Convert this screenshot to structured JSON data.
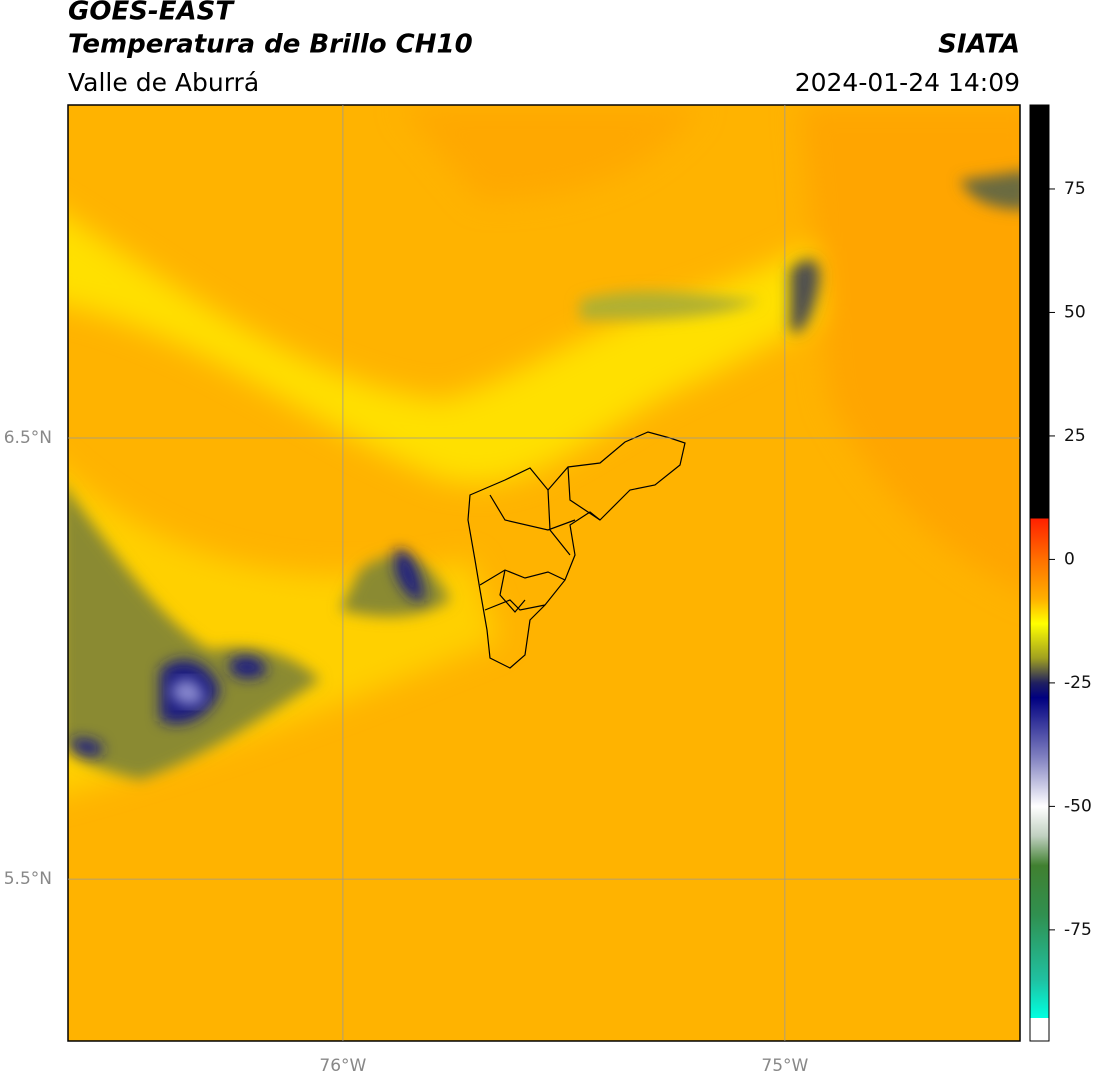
{
  "header": {
    "title": "GOES-EAST",
    "subtitle": "Temperatura de Brillo CH10",
    "region": "Valle de Aburrá",
    "source": "SIATA",
    "datetime": "2024-01-24 14:09"
  },
  "map": {
    "xlim": [
      -76.622,
      -74.468
    ],
    "ylim": [
      5.133,
      7.255
    ],
    "xticks": [
      {
        "value": -76,
        "label": "76°W"
      },
      {
        "value": -75,
        "label": "75°W"
      }
    ],
    "yticks": [
      {
        "value": 6.5,
        "label": "6.5°N"
      },
      {
        "value": 5.5,
        "label": "5.5°N"
      }
    ]
  },
  "colorbar": {
    "lim": [
      -97.5,
      92
    ],
    "ticks": [
      -75,
      -50,
      -25,
      0,
      25,
      50,
      75
    ],
    "stops": [
      {
        "value": 92,
        "color": "#000000"
      },
      {
        "value": 8.3,
        "color": "#000000"
      },
      {
        "value": 8.29,
        "color": "#ff2000"
      },
      {
        "value": 0,
        "color": "#ff7000"
      },
      {
        "value": -8,
        "color": "#ffb000"
      },
      {
        "value": -13,
        "color": "#ffff00"
      },
      {
        "value": -20,
        "color": "#a0a020"
      },
      {
        "value": -25,
        "color": "#202060"
      },
      {
        "value": -28,
        "color": "#000080"
      },
      {
        "value": -40,
        "color": "#8080c0"
      },
      {
        "value": -50,
        "color": "#ffffff"
      },
      {
        "value": -56,
        "color": "#c0d0c0"
      },
      {
        "value": -62,
        "color": "#408030"
      },
      {
        "value": -72,
        "color": "#309050"
      },
      {
        "value": -85,
        "color": "#20c0a0"
      },
      {
        "value": -92.8,
        "color": "#00ffe0"
      },
      {
        "value": -92.81,
        "color": "#ffffff"
      },
      {
        "value": -97.5,
        "color": "#ffffff"
      }
    ]
  }
}
